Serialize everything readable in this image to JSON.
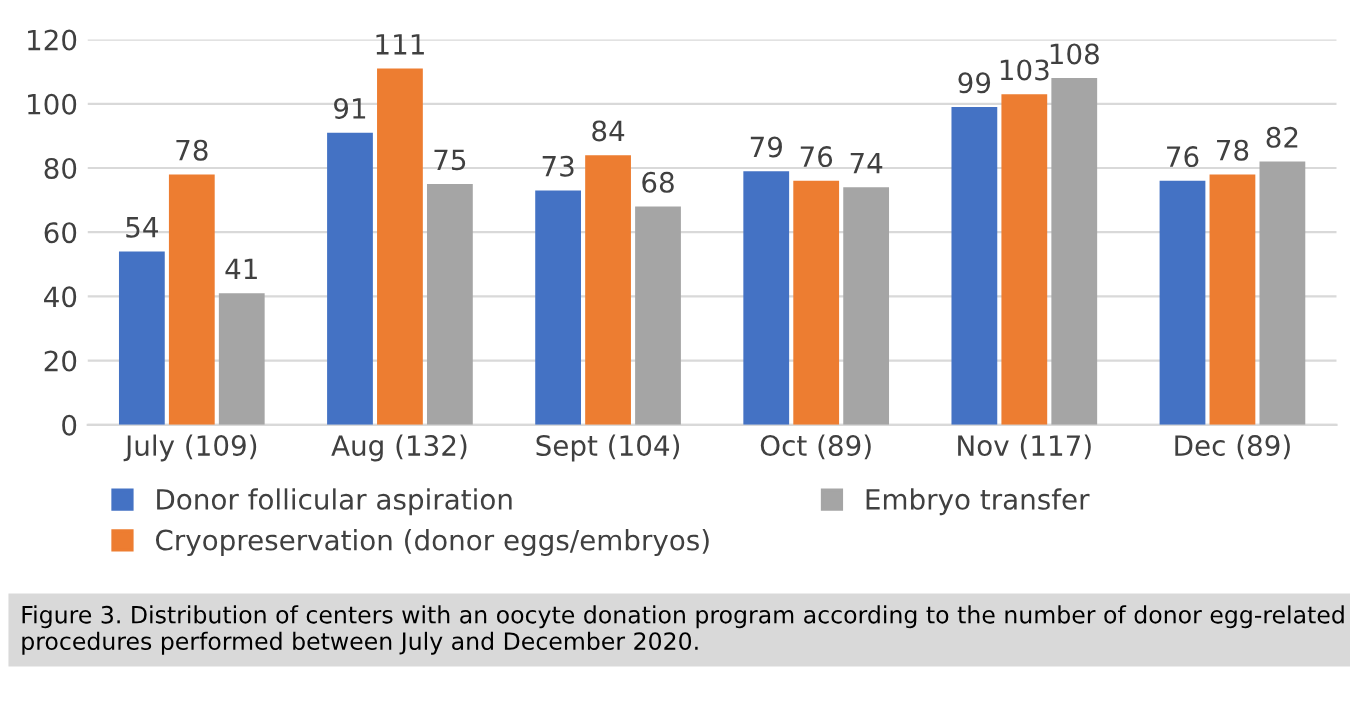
{
  "chart_data": {
    "type": "bar",
    "categories": [
      "July (109)",
      "Aug (132)",
      "Sept (104)",
      "Oct (89)",
      "Nov (117)",
      "Dec (89)"
    ],
    "series": [
      {
        "name": "Donor follicular aspiration",
        "color": "#4472c4",
        "values": [
          54,
          91,
          73,
          79,
          99,
          76
        ]
      },
      {
        "name": "Cryopreservation (donor eggs/embryos)",
        "color": "#ed7d31",
        "values": [
          78,
          111,
          84,
          76,
          103,
          78
        ]
      },
      {
        "name": "Embryo transfer",
        "color": "#a5a5a5",
        "values": [
          41,
          75,
          68,
          74,
          108,
          82
        ]
      }
    ],
    "ylim": [
      0,
      120
    ],
    "yticks": [
      0,
      20,
      40,
      60,
      80,
      100,
      120
    ],
    "grid": "y",
    "legend": "bottom",
    "data_labels": true,
    "annotations": [
      "Figure 3. Distribution of centers with an oocyte donation program according to the number of donor egg-related procedures performed between July and December 2020."
    ]
  }
}
